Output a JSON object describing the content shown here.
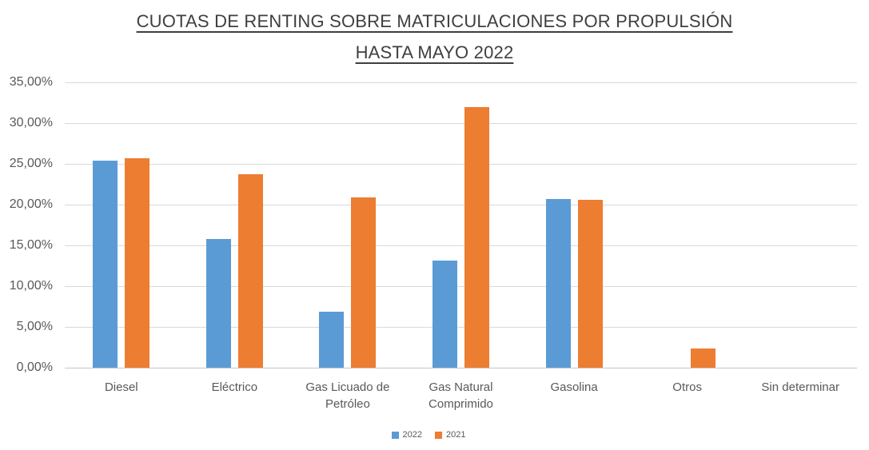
{
  "title": {
    "line1": "CUOTAS DE RENTING SOBRE MATRICULACIONES POR PROPULSIÓN",
    "line2": "HASTA MAYO 2022"
  },
  "chart_data": {
    "type": "bar",
    "categories": [
      "Diesel",
      "Eléctrico",
      "Gas Licuado de Petróleo",
      "Gas Natural Comprimido",
      "Gasolina",
      "Otros",
      "Sin determinar"
    ],
    "series": [
      {
        "name": "2022",
        "color": "#5B9BD5",
        "values": [
          25.4,
          15.8,
          6.9,
          13.1,
          20.7,
          0,
          0
        ]
      },
      {
        "name": "2021",
        "color": "#ED7D31",
        "values": [
          25.7,
          23.7,
          20.9,
          32.0,
          20.6,
          2.4,
          0
        ]
      }
    ],
    "title": "CUOTAS DE RENTING SOBRE MATRICULACIONES POR PROPULSIÓN HASTA MAYO 2022",
    "xlabel": "",
    "ylabel": "",
    "ylim": [
      0,
      35
    ],
    "ytick_step": 5,
    "ytick_labels": [
      "0,00%",
      "5,00%",
      "10,00%",
      "15,00%",
      "20,00%",
      "25,00%",
      "30,00%",
      "35,00%"
    ],
    "grid": true,
    "legend_position": "bottom"
  },
  "colors": {
    "series_2022": "#5B9BD5",
    "series_2021": "#ED7D31",
    "gridline": "#d9d9d9",
    "axis_line": "#c6c6c6",
    "title_text": "#3f3f3f",
    "axis_text": "#595959",
    "background": "#ffffff"
  }
}
